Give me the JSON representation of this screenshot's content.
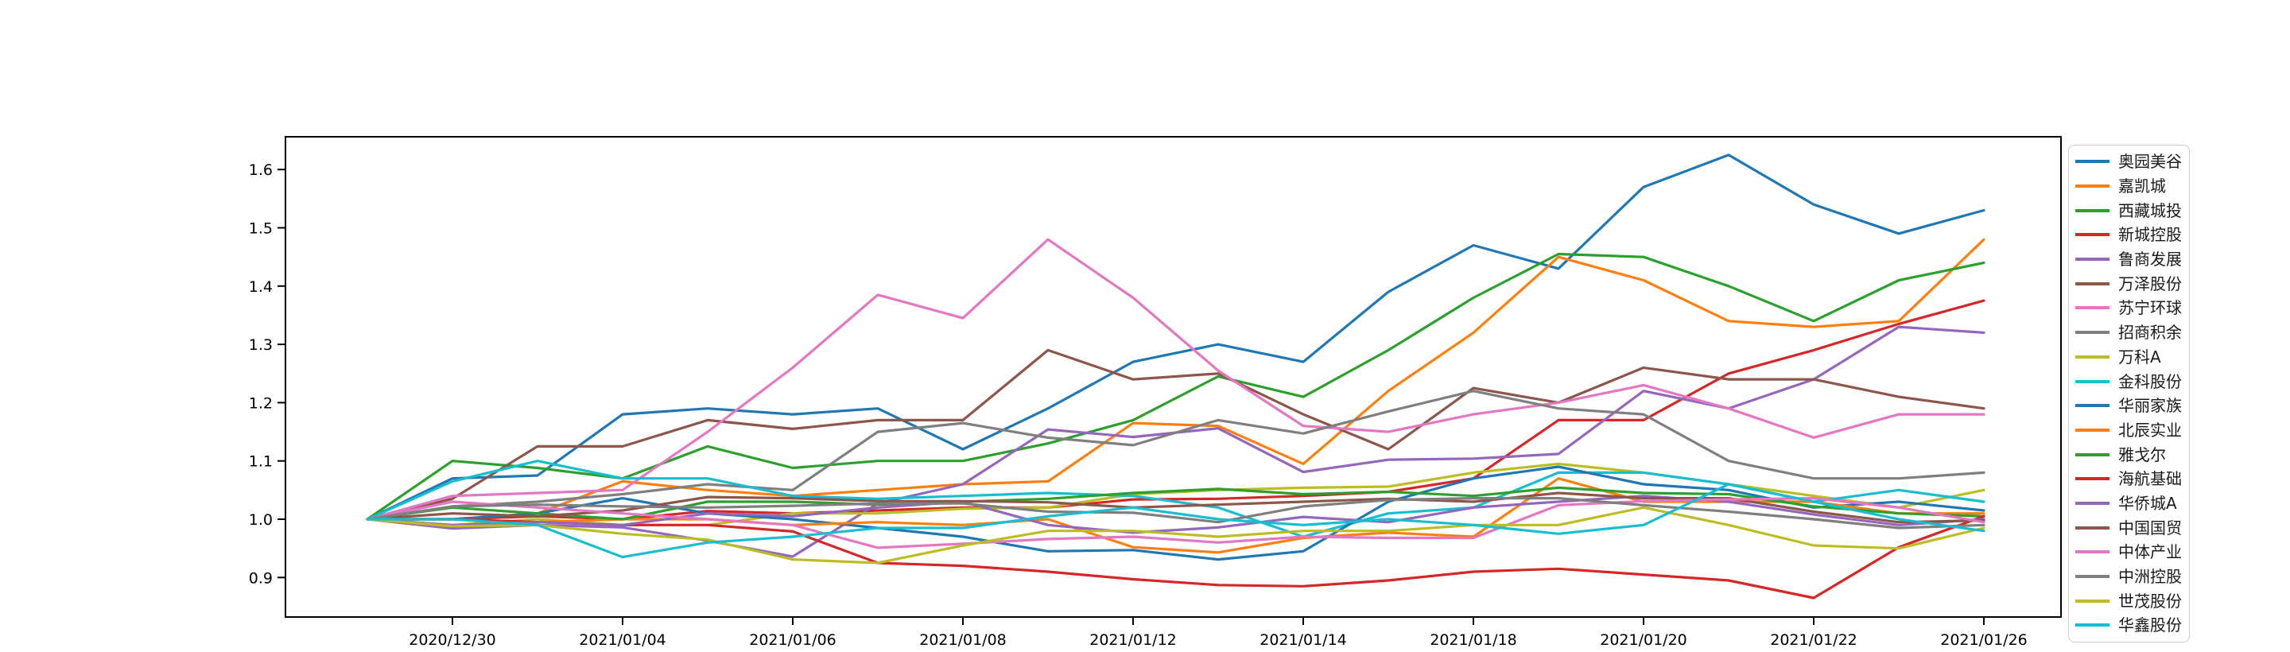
{
  "chart_data": {
    "type": "line",
    "title": "",
    "xlabel": "",
    "ylabel": "",
    "grid": false,
    "legend_position": "right-outside",
    "x_dates": [
      "2020/12/29",
      "2020/12/30",
      "2020/12/31",
      "2021/01/04",
      "2021/01/05",
      "2021/01/06",
      "2021/01/07",
      "2021/01/08",
      "2021/01/11",
      "2021/01/12",
      "2021/01/13",
      "2021/01/14",
      "2021/01/15",
      "2021/01/18",
      "2021/01/19",
      "2021/01/20",
      "2021/01/21",
      "2021/01/22",
      "2021/01/25",
      "2021/01/26"
    ],
    "x_tick_indices": [
      1,
      3,
      5,
      7,
      9,
      11,
      13,
      15,
      17,
      19
    ],
    "x_tick_labels": [
      "2020/12/30",
      "2021/01/04",
      "2021/01/06",
      "2021/01/08",
      "2021/01/12",
      "2021/01/14",
      "2021/01/18",
      "2021/01/20",
      "2021/01/22",
      "2021/01/26"
    ],
    "y_ticks": [
      0.9,
      1.0,
      1.1,
      1.2,
      1.3,
      1.4,
      1.5,
      1.6
    ],
    "y_tick_labels": [
      "0.9",
      "1.0",
      "1.1",
      "1.2",
      "1.3",
      "1.4",
      "1.5",
      "1.6"
    ],
    "ylim": [
      0.832,
      1.656
    ],
    "baseline_value": 1.0,
    "series": [
      {
        "name": "奥园美谷",
        "color": "#1f77b4",
        "values": [
          1.0,
          1.07,
          1.075,
          1.18,
          1.19,
          1.18,
          1.19,
          1.12,
          1.19,
          1.27,
          1.3,
          1.27,
          1.39,
          1.47,
          1.43,
          1.57,
          1.625,
          1.54,
          1.49,
          1.53
        ]
      },
      {
        "name": "嘉凯城",
        "color": "#ff7f0e",
        "values": [
          1.0,
          1.0,
          1.01,
          1.065,
          1.05,
          1.04,
          1.05,
          1.06,
          1.065,
          1.165,
          1.16,
          1.095,
          1.22,
          1.32,
          1.45,
          1.41,
          1.34,
          1.33,
          1.34,
          1.48
        ]
      },
      {
        "name": "西藏城投",
        "color": "#2ca02c",
        "values": [
          1.0,
          1.1,
          1.088,
          1.07,
          1.125,
          1.088,
          1.1,
          1.1,
          1.13,
          1.17,
          1.245,
          1.21,
          1.29,
          1.38,
          1.455,
          1.45,
          1.4,
          1.34,
          1.41,
          1.44
        ]
      },
      {
        "name": "新城控股",
        "color": "#d62728",
        "values": [
          1.0,
          1.0,
          1.005,
          1.0,
          1.014,
          1.01,
          1.015,
          1.02,
          1.02,
          1.034,
          1.035,
          1.04,
          1.047,
          1.07,
          1.17,
          1.17,
          1.25,
          1.29,
          1.335,
          1.375
        ]
      },
      {
        "name": "鲁商发展",
        "color": "#9467bd",
        "values": [
          1.0,
          0.984,
          0.99,
          0.986,
          0.963,
          0.936,
          1.027,
          1.06,
          1.154,
          1.141,
          1.156,
          1.081,
          1.102,
          1.104,
          1.112,
          1.22,
          1.19,
          1.24,
          1.33,
          1.32
        ]
      },
      {
        "name": "万泽股份",
        "color": "#8c564b",
        "values": [
          1.0,
          1.035,
          1.125,
          1.125,
          1.17,
          1.155,
          1.17,
          1.17,
          1.29,
          1.24,
          1.25,
          1.18,
          1.12,
          1.225,
          1.2,
          1.26,
          1.24,
          1.24,
          1.21,
          1.19
        ]
      },
      {
        "name": "苏宁环球",
        "color": "#e377c2",
        "values": [
          1.0,
          1.04,
          1.045,
          1.05,
          1.15,
          1.26,
          1.385,
          1.345,
          1.48,
          1.38,
          1.255,
          1.16,
          1.15,
          1.18,
          1.2,
          1.23,
          1.19,
          1.14,
          1.18,
          1.18
        ]
      },
      {
        "name": "招商积余",
        "color": "#7f7f7f",
        "values": [
          1.0,
          1.022,
          1.03,
          1.043,
          1.06,
          1.05,
          1.15,
          1.165,
          1.14,
          1.127,
          1.17,
          1.147,
          1.185,
          1.22,
          1.19,
          1.18,
          1.1,
          1.07,
          1.07,
          1.08
        ]
      },
      {
        "name": "万科A",
        "color": "#bcbd22",
        "values": [
          1.0,
          0.99,
          1.0,
          0.99,
          0.99,
          1.01,
          1.01,
          1.018,
          1.02,
          1.043,
          1.05,
          1.054,
          1.056,
          1.08,
          1.095,
          1.08,
          1.06,
          1.04,
          1.02,
          1.05
        ]
      },
      {
        "name": "金科股份",
        "color": "#17becf",
        "values": [
          1.0,
          1.065,
          1.1,
          1.07,
          1.07,
          1.04,
          1.035,
          1.04,
          1.045,
          1.04,
          1.02,
          0.97,
          1.01,
          1.02,
          1.08,
          1.08,
          1.06,
          1.03,
          1.05,
          1.03
        ]
      },
      {
        "name": "华丽家族",
        "color": "#1f77b4",
        "values": [
          1.0,
          1.0,
          1.01,
          1.036,
          1.01,
          1.0,
          0.985,
          0.97,
          0.945,
          0.947,
          0.931,
          0.945,
          1.03,
          1.07,
          1.09,
          1.06,
          1.05,
          1.02,
          1.03,
          1.015
        ]
      },
      {
        "name": "北辰实业",
        "color": "#ff7f0e",
        "values": [
          1.0,
          1.0,
          0.995,
          1.0,
          1.0,
          0.99,
          0.995,
          0.99,
          1.0,
          0.952,
          0.943,
          0.968,
          0.977,
          0.97,
          1.07,
          1.03,
          1.03,
          1.03,
          1.01,
          1.01
        ]
      },
      {
        "name": "雅戈尔",
        "color": "#2ca02c",
        "values": [
          1.0,
          1.02,
          1.01,
          1.0,
          1.03,
          1.03,
          1.025,
          1.03,
          1.035,
          1.045,
          1.052,
          1.043,
          1.047,
          1.04,
          1.054,
          1.045,
          1.043,
          1.022,
          1.01,
          1.005
        ]
      },
      {
        "name": "海航基础",
        "color": "#d62728",
        "values": [
          1.0,
          1.0,
          0.995,
          0.99,
          0.99,
          0.979,
          0.925,
          0.92,
          0.91,
          0.897,
          0.887,
          0.885,
          0.895,
          0.91,
          0.915,
          0.905,
          0.895,
          0.865,
          0.952,
          1.005
        ]
      },
      {
        "name": "华侨城A",
        "color": "#9467bd",
        "values": [
          1.0,
          0.99,
          0.995,
          0.99,
          1.01,
          1.005,
          1.02,
          1.03,
          0.99,
          0.977,
          0.986,
          1.004,
          0.995,
          1.02,
          1.03,
          1.04,
          1.03,
          1.008,
          0.99,
          1.0
        ]
      },
      {
        "name": "中国国贸",
        "color": "#8c564b",
        "values": [
          1.0,
          1.01,
          1.005,
          1.015,
          1.038,
          1.036,
          1.031,
          1.031,
          1.029,
          1.02,
          1.025,
          1.03,
          1.035,
          1.03,
          1.045,
          1.036,
          1.036,
          1.013,
          0.995,
          0.998
        ]
      },
      {
        "name": "中体产业",
        "color": "#e377c2",
        "values": [
          1.0,
          1.03,
          1.02,
          1.01,
          1.0,
          0.99,
          0.951,
          0.958,
          0.966,
          0.97,
          0.96,
          0.97,
          0.968,
          0.968,
          1.024,
          1.031,
          1.034,
          1.036,
          1.02,
          0.995
        ]
      },
      {
        "name": "中洲控股",
        "color": "#7f7f7f",
        "values": [
          1.0,
          1.022,
          1.025,
          1.022,
          1.02,
          1.023,
          1.027,
          1.027,
          1.013,
          1.011,
          0.995,
          1.022,
          1.033,
          1.036,
          1.036,
          1.024,
          1.013,
          1.0,
          0.985,
          0.99
        ]
      },
      {
        "name": "世茂股份",
        "color": "#bcbd22",
        "values": [
          1.0,
          0.988,
          0.99,
          0.975,
          0.965,
          0.931,
          0.925,
          0.955,
          0.98,
          0.98,
          0.97,
          0.98,
          0.98,
          0.99,
          0.99,
          1.02,
          0.99,
          0.955,
          0.95,
          0.985
        ]
      },
      {
        "name": "华鑫股份",
        "color": "#17becf",
        "values": [
          1.0,
          1.0,
          0.99,
          0.935,
          0.96,
          0.97,
          0.985,
          0.985,
          1.005,
          1.02,
          1.0,
          0.99,
          1.0,
          0.99,
          0.975,
          0.99,
          1.06,
          1.03,
          1.0,
          0.98
        ]
      }
    ]
  },
  "colors": {
    "background": "#ffffff",
    "axis": "#000000",
    "tick_label": "#000000",
    "legend_border": "#cccccc",
    "legend_text": "#1a1a1a"
  }
}
